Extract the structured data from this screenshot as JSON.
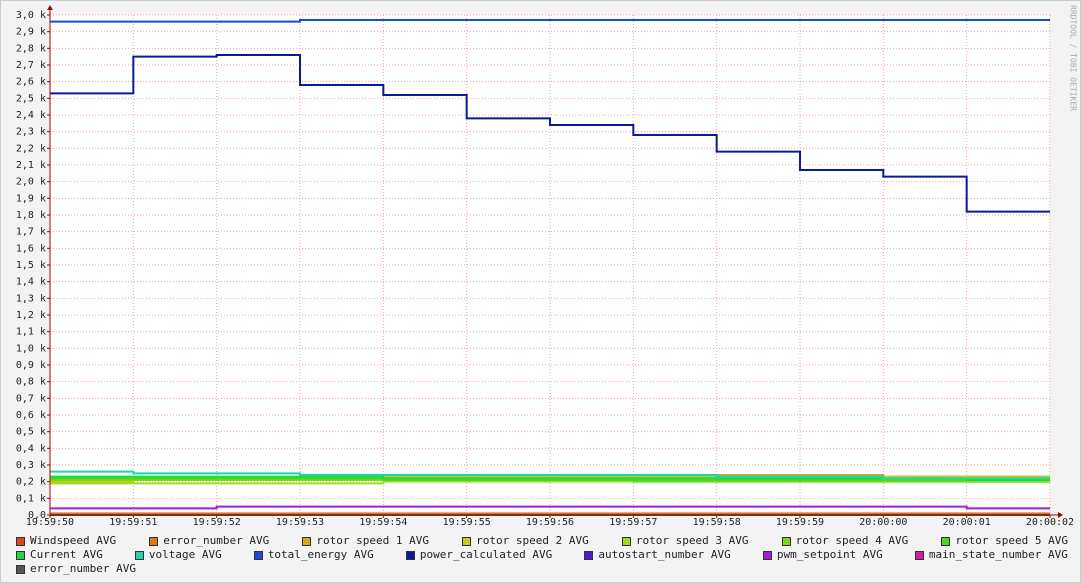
{
  "chart_data": {
    "type": "line",
    "step": true,
    "grid": true,
    "watermark": "RRDTOOL / TOBI OETIKER",
    "x": [
      "19:59:50",
      "19:59:51",
      "19:59:52",
      "19:59:53",
      "19:59:54",
      "19:59:55",
      "19:59:56",
      "19:59:57",
      "19:59:58",
      "19:59:59",
      "20:00:00",
      "20:00:01"
    ],
    "xticks": [
      "19:59:50",
      "19:59:51",
      "19:59:52",
      "19:59:53",
      "19:59:54",
      "19:59:55",
      "19:59:56",
      "19:59:57",
      "19:59:58",
      "19:59:59",
      "20:00:00",
      "20:00:01",
      "20:00:02"
    ],
    "ylim": [
      0,
      3000
    ],
    "yticks": [
      {
        "value": 0,
        "label": "0,0"
      },
      {
        "value": 100,
        "label": "0,1 k"
      },
      {
        "value": 200,
        "label": "0,2 k"
      },
      {
        "value": 300,
        "label": "0,3 k"
      },
      {
        "value": 400,
        "label": "0,4 k"
      },
      {
        "value": 500,
        "label": "0,5 k"
      },
      {
        "value": 600,
        "label": "0,6 k"
      },
      {
        "value": 700,
        "label": "0,7 k"
      },
      {
        "value": 800,
        "label": "0,8 k"
      },
      {
        "value": 900,
        "label": "0,9 k"
      },
      {
        "value": 1000,
        "label": "1,0 k"
      },
      {
        "value": 1100,
        "label": "1,1 k"
      },
      {
        "value": 1200,
        "label": "1,2 k"
      },
      {
        "value": 1300,
        "label": "1,3 k"
      },
      {
        "value": 1400,
        "label": "1,4 k"
      },
      {
        "value": 1500,
        "label": "1,5 k"
      },
      {
        "value": 1600,
        "label": "1,6 k"
      },
      {
        "value": 1700,
        "label": "1,7 k"
      },
      {
        "value": 1800,
        "label": "1,8 k"
      },
      {
        "value": 1900,
        "label": "1,9 k"
      },
      {
        "value": 2000,
        "label": "2,0 k"
      },
      {
        "value": 2100,
        "label": "2,1 k"
      },
      {
        "value": 2200,
        "label": "2,2 k"
      },
      {
        "value": 2300,
        "label": "2,3 k"
      },
      {
        "value": 2400,
        "label": "2,4 k"
      },
      {
        "value": 2500,
        "label": "2,5 k"
      },
      {
        "value": 2600,
        "label": "2,6 k"
      },
      {
        "value": 2700,
        "label": "2,7 k"
      },
      {
        "value": 2800,
        "label": "2,8 k"
      },
      {
        "value": 2900,
        "label": "2,9 k"
      },
      {
        "value": 3000,
        "label": "3,0 k"
      }
    ],
    "series": [
      {
        "name": "Windspeed AVG",
        "color": "#d94a1a",
        "values": [
          0,
          0,
          0,
          0,
          0,
          0,
          0,
          0,
          0,
          0,
          0,
          0
        ]
      },
      {
        "name": "error_number AVG",
        "color": "#d97a1a",
        "values": [
          10,
          10,
          10,
          10,
          10,
          10,
          10,
          10,
          10,
          10,
          10,
          10
        ]
      },
      {
        "name": "rotor speed 1 AVG",
        "color": "#d9a61a",
        "values": [
          220,
          220,
          220,
          230,
          240,
          240,
          240,
          240,
          240,
          240,
          230,
          230
        ]
      },
      {
        "name": "rotor speed 2 AVG",
        "color": "#c9c91a",
        "values": [
          200,
          210,
          210,
          220,
          230,
          230,
          230,
          230,
          230,
          230,
          230,
          230
        ]
      },
      {
        "name": "rotor speed 3 AVG",
        "color": "#a6d91a",
        "values": [
          190,
          190,
          190,
          190,
          200,
          200,
          200,
          200,
          200,
          200,
          200,
          200
        ]
      },
      {
        "name": "rotor speed 4 AVG",
        "color": "#7ad91a",
        "values": [
          210,
          210,
          210,
          210,
          210,
          210,
          210,
          200,
          200,
          200,
          200,
          200
        ]
      },
      {
        "name": "rotor speed 5 AVG",
        "color": "#4ad91a",
        "values": [
          220,
          220,
          220,
          220,
          210,
          210,
          210,
          210,
          210,
          210,
          210,
          210
        ]
      },
      {
        "name": "Current AVG",
        "color": "#1ad94a",
        "values": [
          230,
          230,
          230,
          230,
          220,
          220,
          220,
          220,
          220,
          220,
          220,
          210
        ]
      },
      {
        "name": "voltage AVG",
        "color": "#1ad9a6",
        "values": [
          260,
          250,
          250,
          240,
          240,
          240,
          240,
          240,
          230,
          230,
          220,
          220
        ]
      },
      {
        "name": "total_energy AVG",
        "color": "#1a4ad9",
        "values": [
          2960,
          2960,
          2960,
          2970,
          2970,
          2970,
          2970,
          2970,
          2970,
          2970,
          2970,
          2970
        ]
      },
      {
        "name": "power_calculated AVG",
        "color": "#0a1a99",
        "values": [
          2530,
          2750,
          2760,
          2580,
          2520,
          2380,
          2340,
          2280,
          2180,
          2070,
          2030,
          1820
        ]
      },
      {
        "name": "autostart_number AVG",
        "color": "#4a1ad9",
        "values": [
          0,
          0,
          0,
          0,
          0,
          0,
          0,
          0,
          0,
          0,
          0,
          0
        ]
      },
      {
        "name": "pwm_setpoint AVG",
        "color": "#a61ad9",
        "values": [
          40,
          40,
          50,
          50,
          50,
          50,
          50,
          50,
          50,
          50,
          50,
          40
        ]
      },
      {
        "name": "main_state_number AVG",
        "color": "#d91a9a",
        "values": [
          0,
          0,
          0,
          0,
          0,
          0,
          0,
          0,
          0,
          0,
          0,
          0
        ]
      },
      {
        "name": "error_number AVG",
        "color": "#555555",
        "values": [
          0,
          0,
          0,
          0,
          0,
          0,
          0,
          0,
          0,
          0,
          0,
          0
        ]
      }
    ]
  }
}
